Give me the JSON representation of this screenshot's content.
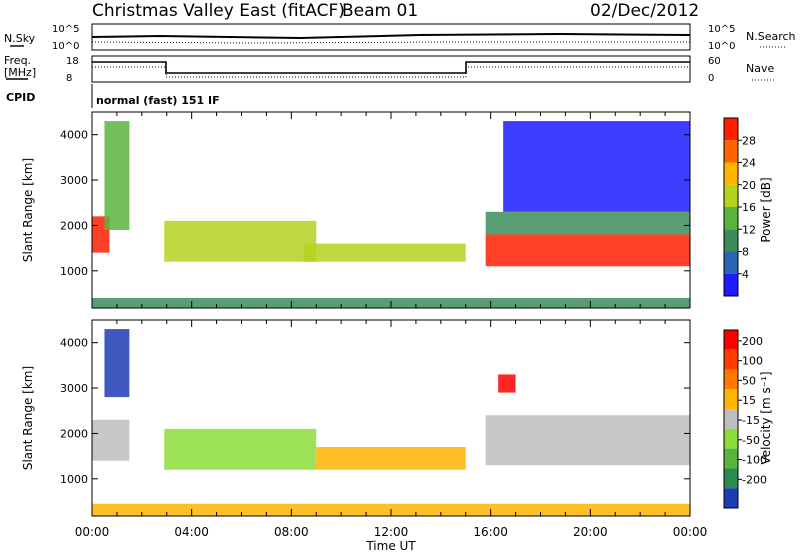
{
  "header": {
    "title": "Christmas Valley East (fitACF)",
    "beam": "Beam 01",
    "date": "02/Dec/2012"
  },
  "panels_top": {
    "nsky_label": "N.Sky",
    "nsky_ticks": [
      "10^5",
      "10^0"
    ],
    "nsearch_label": "N.Search",
    "nsearch_ticks": [
      "10^5",
      "10^0"
    ],
    "freq_label_1": "Freq.",
    "freq_label_2": "[MHz]",
    "freq_ticks": [
      "18",
      "8"
    ],
    "nave_label": "Nave",
    "nave_ticks": [
      "60",
      "0"
    ],
    "cpid_label": "CPID",
    "cpid_value": "normal (fast) 151 IF"
  },
  "chart_data": [
    {
      "type": "heatmap",
      "name": "power",
      "ylabel": "Slant Range [km]",
      "xlabel": "Time UT",
      "yticks": [
        "1000",
        "2000",
        "3000",
        "4000"
      ],
      "ylim": [
        180,
        4500
      ],
      "xticks": [
        "00:00",
        "04:00",
        "08:00",
        "12:00",
        "16:00",
        "20:00",
        "00:00"
      ],
      "xlim": [
        0,
        24
      ],
      "colorbar": {
        "label": "Power [dB]",
        "ticks": [
          "4",
          "8",
          "12",
          "16",
          "20",
          "24",
          "28"
        ],
        "colors": [
          "#1c1cff",
          "#2a64b4",
          "#3c8c5a",
          "#5ab43c",
          "#b4d21e",
          "#ffb400",
          "#ff6400",
          "#ff1e00"
        ]
      },
      "regions": [
        {
          "t0": 0.0,
          "t1": 0.7,
          "r0": 1400,
          "r1": 2200,
          "level": 7
        },
        {
          "t0": 0.5,
          "t1": 1.5,
          "r0": 1900,
          "r1": 4300,
          "level": 3
        },
        {
          "t0": 2.9,
          "t1": 9.0,
          "r0": 1200,
          "r1": 2100,
          "level": 4
        },
        {
          "t0": 8.5,
          "t1": 15.0,
          "r0": 1200,
          "r1": 1600,
          "level": 4
        },
        {
          "t0": 15.8,
          "t1": 24.0,
          "r0": 1100,
          "r1": 1800,
          "level": 7
        },
        {
          "t0": 15.8,
          "t1": 24.0,
          "r0": 1800,
          "r1": 2300,
          "level": 2
        },
        {
          "t0": 16.5,
          "t1": 24.0,
          "r0": 2300,
          "r1": 4300,
          "level": 0
        },
        {
          "t0": 0.0,
          "t1": 24.0,
          "r0": 180,
          "r1": 400,
          "level": 2
        }
      ]
    },
    {
      "type": "heatmap",
      "name": "velocity",
      "ylabel": "Slant Range [km]",
      "xlabel": "Time UT",
      "yticks": [
        "1000",
        "2000",
        "3000",
        "4000"
      ],
      "ylim": [
        180,
        4500
      ],
      "xticks": [
        "00:00",
        "04:00",
        "08:00",
        "12:00",
        "16:00",
        "20:00",
        "00:00"
      ],
      "xlim": [
        0,
        24
      ],
      "colorbar": {
        "label": "Velocity [m s⁻¹]",
        "ticks": [
          "200",
          "100",
          "50",
          "15",
          "-15",
          "-50",
          "-100",
          "-200"
        ],
        "colors": [
          "#1c3cb4",
          "#2a8c50",
          "#5ab43c",
          "#8cdc3c",
          "#bebebe",
          "#ffb400",
          "#ff7800",
          "#ff3c00",
          "#ff0000"
        ]
      },
      "regions": [
        {
          "t0": 0.0,
          "t1": 1.5,
          "r0": 1400,
          "r1": 2300,
          "level": 4
        },
        {
          "t0": 0.5,
          "t1": 1.5,
          "r0": 2800,
          "r1": 4300,
          "level": 0
        },
        {
          "t0": 2.9,
          "t1": 9.0,
          "r0": 1200,
          "r1": 2100,
          "level": 3
        },
        {
          "t0": 9.0,
          "t1": 15.0,
          "r0": 1200,
          "r1": 1700,
          "level": 5
        },
        {
          "t0": 15.8,
          "t1": 24.0,
          "r0": 1300,
          "r1": 2400,
          "level": 4
        },
        {
          "t0": 16.3,
          "t1": 17.0,
          "r0": 2900,
          "r1": 3300,
          "level": 8
        },
        {
          "t0": 0.0,
          "t1": 24.0,
          "r0": 180,
          "r1": 450,
          "level": 5
        }
      ]
    }
  ]
}
